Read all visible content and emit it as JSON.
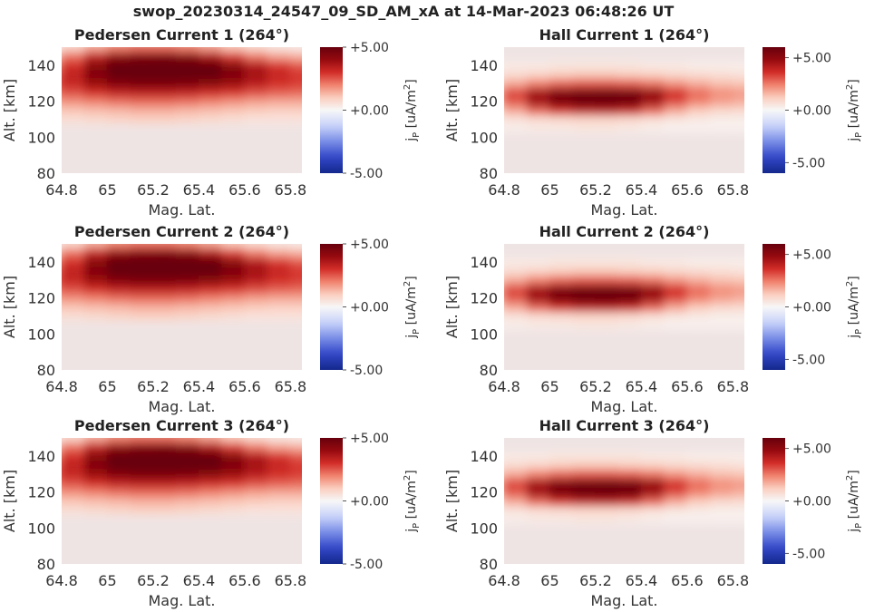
{
  "figure": {
    "title": "swop_20230314_24547_09_SD_AM_xA at 14-Mar-2023 06:48:26 UT"
  },
  "chart_data": [
    {
      "type": "heatmap",
      "title": "Pedersen Current 1 (264°)",
      "xlabel": "Mag. Lat.",
      "ylabel": "Alt. [km]",
      "xlim": [
        64.8,
        65.85
      ],
      "ylim": [
        80,
        150
      ],
      "xticks": [
        "64.8",
        "65",
        "65.2",
        "65.4",
        "65.6",
        "65.8"
      ],
      "yticks": [
        "80",
        "100",
        "120",
        "140"
      ],
      "colorbar": {
        "label": "jP [uA/m2]",
        "ticks": [
          "+5.00",
          "+0.00",
          "-5.00"
        ],
        "range": [
          -5,
          5
        ],
        "colormap": "blue-white-red"
      },
      "grid": {
        "x": [
          64.75,
          64.85,
          64.95,
          65.05,
          65.15,
          65.25,
          65.35,
          65.45,
          65.55,
          65.65,
          65.75,
          65.85
        ],
        "y": [
          110,
          115,
          120,
          125,
          130,
          135,
          140,
          145,
          150
        ]
      },
      "values": [
        [
          0.6,
          0.6,
          0.7,
          0.8,
          0.9,
          0.9,
          0.8,
          0.7,
          0.6,
          0.5,
          0.5,
          0.5
        ],
        [
          1.0,
          1.1,
          1.2,
          1.3,
          1.4,
          1.4,
          1.3,
          1.2,
          1.1,
          1.0,
          0.9,
          0.9
        ],
        [
          1.6,
          1.8,
          2.0,
          2.2,
          2.3,
          2.3,
          2.2,
          2.0,
          1.8,
          1.6,
          1.5,
          1.5
        ],
        [
          2.2,
          2.6,
          3.0,
          3.3,
          3.4,
          3.4,
          3.3,
          3.1,
          2.9,
          2.6,
          2.4,
          2.3
        ],
        [
          2.6,
          3.2,
          3.9,
          4.4,
          4.6,
          4.6,
          4.5,
          4.3,
          3.9,
          3.4,
          3.0,
          2.8
        ],
        [
          2.4,
          3.3,
          4.4,
          5.0,
          5.2,
          5.3,
          5.2,
          5.0,
          4.5,
          3.8,
          3.2,
          2.9
        ],
        [
          2.0,
          3.0,
          4.3,
          5.0,
          5.3,
          5.4,
          5.3,
          5.0,
          4.3,
          3.5,
          2.9,
          2.5
        ],
        [
          1.2,
          2.2,
          3.3,
          4.1,
          4.4,
          4.5,
          4.3,
          3.6,
          2.8,
          2.1,
          1.6,
          1.4
        ],
        [
          0.3,
          0.8,
          1.5,
          2.0,
          2.2,
          2.2,
          2.0,
          1.6,
          1.1,
          0.7,
          0.4,
          0.3
        ]
      ]
    },
    {
      "type": "heatmap",
      "title": "Hall Current 1 (264°)",
      "xlabel": "Mag. Lat.",
      "ylabel": "Alt. [km]",
      "xlim": [
        64.8,
        65.85
      ],
      "ylim": [
        80,
        150
      ],
      "xticks": [
        "64.8",
        "65",
        "65.2",
        "65.4",
        "65.6",
        "65.8"
      ],
      "yticks": [
        "80",
        "100",
        "120",
        "140"
      ],
      "colorbar": {
        "label": "jP [uA/m2]",
        "ticks": [
          "+5.00",
          "+0.00",
          "-5.00"
        ],
        "range": [
          -6,
          6
        ],
        "colormap": "blue-white-red"
      },
      "grid": {
        "x": [
          64.75,
          64.85,
          64.95,
          65.05,
          65.15,
          65.25,
          65.35,
          65.45,
          65.55,
          65.65,
          65.75,
          65.85
        ],
        "y": [
          105,
          110,
          115,
          120,
          125,
          130,
          135,
          140
        ]
      },
      "values": [
        [
          0.2,
          0.3,
          0.4,
          0.4,
          0.5,
          0.5,
          0.4,
          0.3,
          0.2,
          0.2,
          0.2,
          0.2
        ],
        [
          0.4,
          0.6,
          0.8,
          0.9,
          1.0,
          1.0,
          0.9,
          0.7,
          0.5,
          0.4,
          0.3,
          0.3
        ],
        [
          1.0,
          1.8,
          2.8,
          3.6,
          4.0,
          4.1,
          3.8,
          2.8,
          1.8,
          1.2,
          0.9,
          0.8
        ],
        [
          1.8,
          3.0,
          4.6,
          5.6,
          6.0,
          6.2,
          5.9,
          4.6,
          3.2,
          2.4,
          1.9,
          1.7
        ],
        [
          1.9,
          3.2,
          4.5,
          5.3,
          5.6,
          5.7,
          5.5,
          4.8,
          3.6,
          2.7,
          2.2,
          2.0
        ],
        [
          1.2,
          1.8,
          2.4,
          2.8,
          3.0,
          3.0,
          2.9,
          2.6,
          2.1,
          1.7,
          1.4,
          1.3
        ],
        [
          0.6,
          0.8,
          1.0,
          1.2,
          1.3,
          1.3,
          1.2,
          1.1,
          0.9,
          0.8,
          0.7,
          0.6
        ],
        [
          0.3,
          0.4,
          0.4,
          0.5,
          0.5,
          0.5,
          0.5,
          0.4,
          0.4,
          0.3,
          0.3,
          0.3
        ]
      ]
    },
    {
      "type": "heatmap",
      "title": "Pedersen Current 2 (264°)",
      "xlabel": "Mag. Lat.",
      "ylabel": "Alt. [km]",
      "xlim": [
        64.8,
        65.85
      ],
      "ylim": [
        80,
        150
      ],
      "xticks": [
        "64.8",
        "65",
        "65.2",
        "65.4",
        "65.6",
        "65.8"
      ],
      "yticks": [
        "80",
        "100",
        "120",
        "140"
      ],
      "colorbar": {
        "label": "jP [uA/m2]",
        "ticks": [
          "+5.00",
          "+0.00",
          "-5.00"
        ],
        "range": [
          -5,
          5
        ],
        "colormap": "blue-white-red"
      },
      "grid": {
        "x": [
          64.75,
          64.85,
          64.95,
          65.05,
          65.15,
          65.25,
          65.35,
          65.45,
          65.55,
          65.65,
          65.75,
          65.85
        ],
        "y": [
          110,
          115,
          120,
          125,
          130,
          135,
          140,
          145,
          150
        ]
      },
      "values": [
        [
          0.6,
          0.6,
          0.7,
          0.8,
          0.9,
          0.9,
          0.8,
          0.7,
          0.6,
          0.5,
          0.5,
          0.5
        ],
        [
          1.0,
          1.1,
          1.2,
          1.3,
          1.4,
          1.4,
          1.3,
          1.2,
          1.1,
          1.0,
          0.9,
          0.9
        ],
        [
          1.6,
          1.8,
          2.0,
          2.2,
          2.3,
          2.3,
          2.2,
          2.0,
          1.8,
          1.6,
          1.5,
          1.5
        ],
        [
          2.2,
          2.6,
          3.0,
          3.3,
          3.4,
          3.4,
          3.3,
          3.1,
          2.9,
          2.6,
          2.4,
          2.3
        ],
        [
          2.6,
          3.2,
          3.9,
          4.4,
          4.6,
          4.6,
          4.5,
          4.3,
          3.9,
          3.4,
          3.0,
          2.8
        ],
        [
          2.4,
          3.3,
          4.4,
          5.0,
          5.2,
          5.3,
          5.2,
          5.0,
          4.5,
          3.8,
          3.2,
          2.9
        ],
        [
          2.0,
          3.0,
          4.3,
          5.0,
          5.3,
          5.4,
          5.3,
          5.0,
          4.3,
          3.5,
          2.9,
          2.5
        ],
        [
          1.2,
          2.2,
          3.3,
          4.1,
          4.4,
          4.5,
          4.3,
          3.6,
          2.8,
          2.1,
          1.6,
          1.4
        ],
        [
          0.3,
          0.8,
          1.5,
          2.0,
          2.2,
          2.2,
          2.0,
          1.6,
          1.1,
          0.7,
          0.4,
          0.3
        ]
      ]
    },
    {
      "type": "heatmap",
      "title": "Hall Current 2 (264°)",
      "xlabel": "Mag. Lat.",
      "ylabel": "Alt. [km]",
      "xlim": [
        64.8,
        65.85
      ],
      "ylim": [
        80,
        150
      ],
      "xticks": [
        "64.8",
        "65",
        "65.2",
        "65.4",
        "65.6",
        "65.8"
      ],
      "yticks": [
        "80",
        "100",
        "120",
        "140"
      ],
      "colorbar": {
        "label": "jP [uA/m2]",
        "ticks": [
          "+5.00",
          "+0.00",
          "-5.00"
        ],
        "range": [
          -6,
          6
        ],
        "colormap": "blue-white-red"
      },
      "grid": {
        "x": [
          64.75,
          64.85,
          64.95,
          65.05,
          65.15,
          65.25,
          65.35,
          65.45,
          65.55,
          65.65,
          65.75,
          65.85
        ],
        "y": [
          105,
          110,
          115,
          120,
          125,
          130,
          135,
          140
        ]
      },
      "values": [
        [
          0.2,
          0.3,
          0.4,
          0.4,
          0.5,
          0.5,
          0.4,
          0.3,
          0.2,
          0.2,
          0.2,
          0.2
        ],
        [
          0.4,
          0.6,
          0.8,
          0.9,
          1.0,
          1.0,
          0.9,
          0.7,
          0.5,
          0.4,
          0.3,
          0.3
        ],
        [
          1.0,
          1.8,
          2.8,
          3.6,
          4.0,
          4.1,
          3.8,
          2.8,
          1.8,
          1.2,
          0.9,
          0.8
        ],
        [
          1.8,
          3.0,
          4.6,
          5.6,
          6.0,
          6.2,
          5.9,
          4.6,
          3.2,
          2.4,
          1.9,
          1.7
        ],
        [
          1.9,
          3.2,
          4.5,
          5.3,
          5.6,
          5.7,
          5.5,
          4.8,
          3.6,
          2.7,
          2.2,
          2.0
        ],
        [
          1.2,
          1.8,
          2.4,
          2.8,
          3.0,
          3.0,
          2.9,
          2.6,
          2.1,
          1.7,
          1.4,
          1.3
        ],
        [
          0.6,
          0.8,
          1.0,
          1.2,
          1.3,
          1.3,
          1.2,
          1.1,
          0.9,
          0.8,
          0.7,
          0.6
        ],
        [
          0.3,
          0.4,
          0.4,
          0.5,
          0.5,
          0.5,
          0.5,
          0.4,
          0.4,
          0.3,
          0.3,
          0.3
        ]
      ]
    },
    {
      "type": "heatmap",
      "title": "Pedersen Current 3 (264°)",
      "xlabel": "Mag. Lat.",
      "ylabel": "Alt. [km]",
      "xlim": [
        64.8,
        65.85
      ],
      "ylim": [
        80,
        150
      ],
      "xticks": [
        "64.8",
        "65",
        "65.2",
        "65.4",
        "65.6",
        "65.8"
      ],
      "yticks": [
        "80",
        "100",
        "120",
        "140"
      ],
      "colorbar": {
        "label": "jP [uA/m2]",
        "ticks": [
          "+5.00",
          "+0.00",
          "-5.00"
        ],
        "range": [
          -5,
          5
        ],
        "colormap": "blue-white-red"
      },
      "grid": {
        "x": [
          64.75,
          64.85,
          64.95,
          65.05,
          65.15,
          65.25,
          65.35,
          65.45,
          65.55,
          65.65,
          65.75,
          65.85
        ],
        "y": [
          110,
          115,
          120,
          125,
          130,
          135,
          140,
          145,
          150
        ]
      },
      "values": [
        [
          0.6,
          0.6,
          0.7,
          0.8,
          0.9,
          0.9,
          0.8,
          0.7,
          0.6,
          0.5,
          0.5,
          0.5
        ],
        [
          1.0,
          1.1,
          1.2,
          1.3,
          1.4,
          1.4,
          1.3,
          1.2,
          1.1,
          1.0,
          0.9,
          0.9
        ],
        [
          1.6,
          1.8,
          2.0,
          2.2,
          2.3,
          2.3,
          2.2,
          2.0,
          1.8,
          1.6,
          1.5,
          1.5
        ],
        [
          2.2,
          2.6,
          3.0,
          3.3,
          3.4,
          3.4,
          3.3,
          3.1,
          2.9,
          2.6,
          2.4,
          2.3
        ],
        [
          2.6,
          3.2,
          3.9,
          4.4,
          4.6,
          4.6,
          4.5,
          4.3,
          3.9,
          3.4,
          3.0,
          2.8
        ],
        [
          2.4,
          3.3,
          4.4,
          5.0,
          5.2,
          5.3,
          5.2,
          5.0,
          4.5,
          3.8,
          3.2,
          2.9
        ],
        [
          2.0,
          3.0,
          4.3,
          5.0,
          5.3,
          5.4,
          5.3,
          5.0,
          4.3,
          3.5,
          2.9,
          2.5
        ],
        [
          1.2,
          2.2,
          3.3,
          4.1,
          4.4,
          4.5,
          4.3,
          3.6,
          2.8,
          2.1,
          1.6,
          1.4
        ],
        [
          0.3,
          0.8,
          1.5,
          2.0,
          2.2,
          2.2,
          2.0,
          1.6,
          1.1,
          0.7,
          0.4,
          0.3
        ]
      ]
    },
    {
      "type": "heatmap",
      "title": "Hall Current 3 (264°)",
      "xlabel": "Mag. Lat.",
      "ylabel": "Alt. [km]",
      "xlim": [
        64.8,
        65.85
      ],
      "ylim": [
        80,
        150
      ],
      "xticks": [
        "64.8",
        "65",
        "65.2",
        "65.4",
        "65.6",
        "65.8"
      ],
      "yticks": [
        "80",
        "100",
        "120",
        "140"
      ],
      "colorbar": {
        "label": "jP [uA/m2]",
        "ticks": [
          "+5.00",
          "+0.00",
          "-5.00"
        ],
        "range": [
          -6,
          6
        ],
        "colormap": "blue-white-red"
      },
      "grid": {
        "x": [
          64.75,
          64.85,
          64.95,
          65.05,
          65.15,
          65.25,
          65.35,
          65.45,
          65.55,
          65.65,
          65.75,
          65.85
        ],
        "y": [
          105,
          110,
          115,
          120,
          125,
          130,
          135,
          140
        ]
      },
      "values": [
        [
          0.2,
          0.3,
          0.4,
          0.4,
          0.5,
          0.5,
          0.4,
          0.3,
          0.2,
          0.2,
          0.2,
          0.2
        ],
        [
          0.4,
          0.6,
          0.8,
          0.9,
          1.0,
          1.0,
          0.9,
          0.7,
          0.5,
          0.4,
          0.3,
          0.3
        ],
        [
          1.0,
          1.8,
          2.8,
          3.6,
          4.0,
          4.1,
          3.8,
          2.8,
          1.8,
          1.2,
          0.9,
          0.8
        ],
        [
          1.8,
          3.0,
          4.6,
          5.6,
          6.0,
          6.2,
          5.9,
          4.6,
          3.2,
          2.4,
          1.9,
          1.7
        ],
        [
          1.9,
          3.2,
          4.5,
          5.3,
          5.6,
          5.7,
          5.5,
          4.8,
          3.6,
          2.7,
          2.2,
          2.0
        ],
        [
          1.2,
          1.8,
          2.4,
          2.8,
          3.0,
          3.0,
          2.9,
          2.6,
          2.1,
          1.7,
          1.4,
          1.3
        ],
        [
          0.6,
          0.8,
          1.0,
          1.2,
          1.3,
          1.3,
          1.2,
          1.1,
          0.9,
          0.8,
          0.7,
          0.6
        ],
        [
          0.3,
          0.4,
          0.4,
          0.5,
          0.5,
          0.5,
          0.5,
          0.4,
          0.4,
          0.3,
          0.3,
          0.3
        ]
      ]
    }
  ]
}
